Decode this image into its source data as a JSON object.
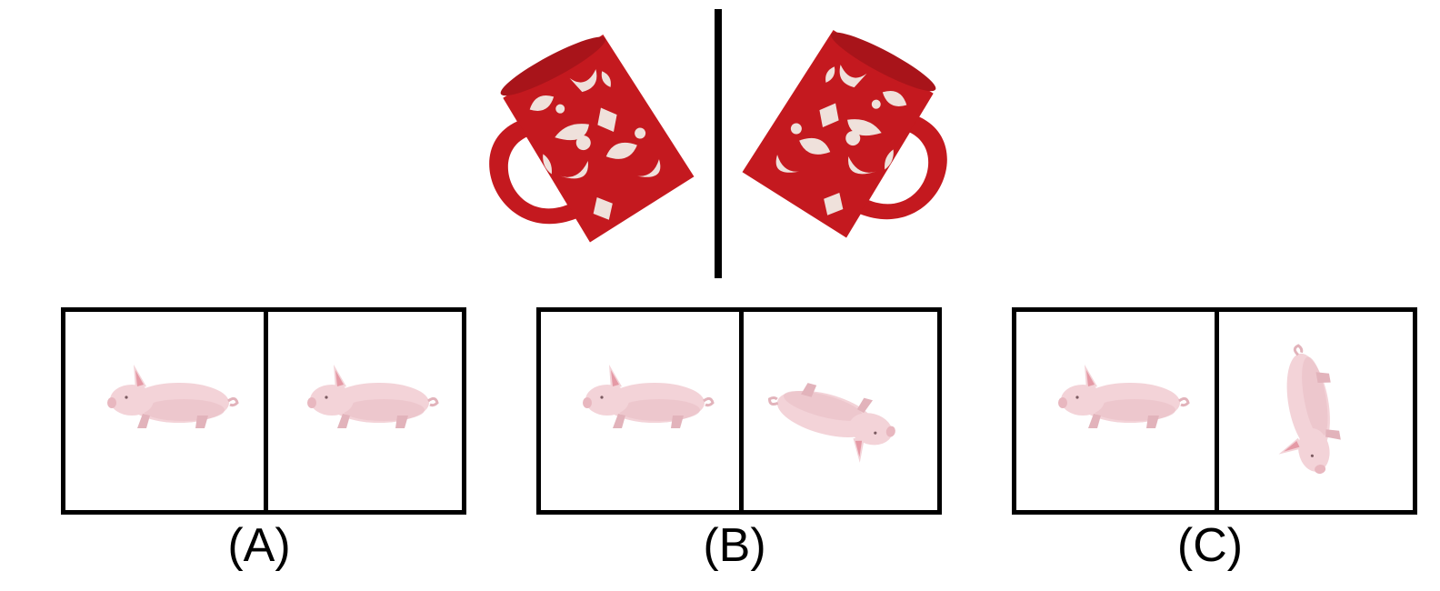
{
  "options": [
    {
      "label": "(A)"
    },
    {
      "label": "(B)"
    },
    {
      "label": "(C)"
    }
  ],
  "colors": {
    "mug_red": "#c4191f",
    "mug_pattern": "#f2ece6",
    "pig_body": "#f3d3d8",
    "pig_shade": "#e2b3bb",
    "ear_inner": "#e59aa6",
    "line": "#000000"
  },
  "icons": {
    "mug": "patterned-red-mug-icon",
    "pig": "pink-pig-icon"
  }
}
